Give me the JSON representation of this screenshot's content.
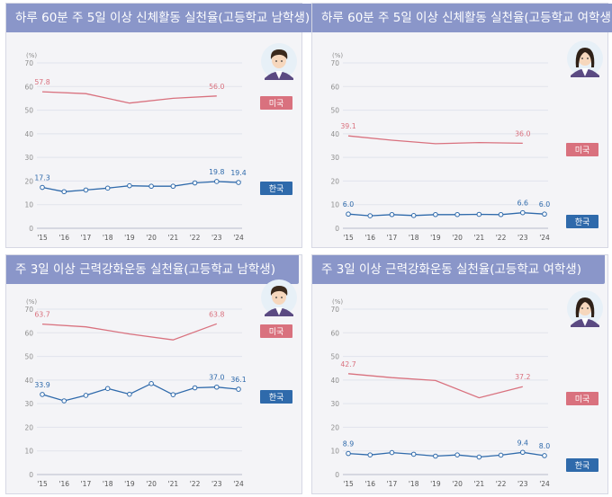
{
  "panels": [
    {
      "title": "하루 60분 주 5일 이상 신체활동 실천율(고등학교 남학생)",
      "avatar": "boy-student-icon"
    },
    {
      "title": "하루 60분 주 5일 이상 신체활동 실천율(고등학교 여학생)",
      "avatar": "girl-student-icon"
    },
    {
      "title": "주 3일 이상 근력강화운동 실천율(고등학교 남학생)",
      "avatar": "boy-student-icon"
    },
    {
      "title": "주 3일 이상 근력강화운동 실천율(고등학교 여학생)",
      "avatar": "girl-student-icon"
    }
  ],
  "colors": {
    "us": "#d9717e",
    "korea": "#2f6aab",
    "title_bar": "#8a96c9",
    "panel_bg": "#f4f4f7"
  },
  "chart_data": [
    {
      "type": "line",
      "x": [
        "'15",
        "'16",
        "'17",
        "'18",
        "'19",
        "'20",
        "'21",
        "'22",
        "'23",
        "'24"
      ],
      "ylabel": "(%)",
      "ylim": [
        0,
        70
      ],
      "yticks": [
        0,
        10,
        20,
        30,
        40,
        50,
        60,
        70
      ],
      "series": [
        {
          "name": "미국",
          "values": [
            57.8,
            null,
            57.0,
            null,
            53.0,
            null,
            55.0,
            null,
            56.0,
            null
          ],
          "labels": [
            "57.8",
            "56.0"
          ]
        },
        {
          "name": "한국",
          "values": [
            17.3,
            15.5,
            16.2,
            17.0,
            18.0,
            17.8,
            17.8,
            19.2,
            19.8,
            19.4
          ],
          "labels": [
            "17.3",
            "19.8",
            "19.4"
          ]
        }
      ]
    },
    {
      "type": "line",
      "x": [
        "'15",
        "'16",
        "'17",
        "'18",
        "'19",
        "'20",
        "'21",
        "'22",
        "'23",
        "'24"
      ],
      "ylabel": "(%)",
      "ylim": [
        0,
        70
      ],
      "yticks": [
        0,
        10,
        20,
        30,
        40,
        50,
        60,
        70
      ],
      "series": [
        {
          "name": "미국",
          "values": [
            39.1,
            null,
            37.3,
            null,
            35.8,
            null,
            36.3,
            null,
            36.0,
            null
          ],
          "labels": [
            "39.1",
            "36.0"
          ]
        },
        {
          "name": "한국",
          "values": [
            6.0,
            5.3,
            5.8,
            5.4,
            5.8,
            5.8,
            5.9,
            5.8,
            6.6,
            6.0
          ],
          "labels": [
            "6.0",
            "6.6",
            "6.0"
          ]
        }
      ]
    },
    {
      "type": "line",
      "x": [
        "'15",
        "'16",
        "'17",
        "'18",
        "'19",
        "'20",
        "'21",
        "'22",
        "'23",
        "'24"
      ],
      "ylabel": "(%)",
      "ylim": [
        0,
        70
      ],
      "yticks": [
        0,
        10,
        20,
        30,
        40,
        50,
        60,
        70
      ],
      "series": [
        {
          "name": "미국",
          "values": [
            63.7,
            null,
            62.5,
            null,
            59.5,
            null,
            57.0,
            null,
            63.8,
            null
          ],
          "labels": [
            "63.7",
            "63.8"
          ]
        },
        {
          "name": "한국",
          "values": [
            33.9,
            31.2,
            33.5,
            36.4,
            34.0,
            38.5,
            33.8,
            36.7,
            37.0,
            36.1
          ],
          "labels": [
            "33.9",
            "37.0",
            "36.1"
          ]
        }
      ]
    },
    {
      "type": "line",
      "x": [
        "'15",
        "'16",
        "'17",
        "'18",
        "'19",
        "'20",
        "'21",
        "'22",
        "'23",
        "'24"
      ],
      "ylabel": "(%)",
      "ylim": [
        0,
        70
      ],
      "yticks": [
        0,
        10,
        20,
        30,
        40,
        50,
        60,
        70
      ],
      "series": [
        {
          "name": "미국",
          "values": [
            42.7,
            null,
            41.0,
            null,
            39.8,
            null,
            32.5,
            null,
            37.2,
            null
          ],
          "labels": [
            "42.7",
            "37.2"
          ]
        },
        {
          "name": "한국",
          "values": [
            8.9,
            8.3,
            9.3,
            8.6,
            7.8,
            8.3,
            7.4,
            8.2,
            9.4,
            8.0
          ],
          "labels": [
            "8.9",
            "9.4",
            "8.0"
          ]
        }
      ]
    }
  ]
}
